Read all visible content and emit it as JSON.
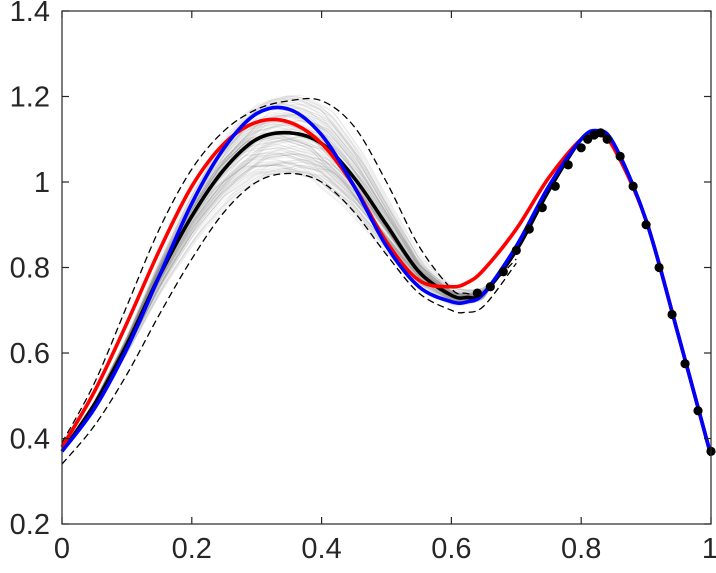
{
  "chart_data": {
    "type": "line",
    "title": "",
    "xlabel": "",
    "ylabel": "",
    "xlim": [
      0,
      1
    ],
    "ylim": [
      0.2,
      1.4
    ],
    "grid": false,
    "legend": "none",
    "xticks": [
      0,
      0.2,
      0.4,
      0.6,
      0.8,
      1
    ],
    "xtick_labels": [
      "0",
      "0.2",
      "0.4",
      "0.6",
      "0.8",
      "1"
    ],
    "yticks": [
      0.2,
      0.4,
      0.6,
      0.8,
      1.0,
      1.2,
      1.4
    ],
    "ytick_labels": [
      "0.2",
      "0.4",
      "0.6",
      "0.8",
      "1",
      "1.2",
      "1.4"
    ],
    "series": [
      {
        "role": "upper-band-dashed",
        "color": "#000000",
        "style": "dashed",
        "x": [
          0,
          0.05,
          0.1,
          0.15,
          0.2,
          0.25,
          0.3,
          0.35,
          0.4,
          0.45,
          0.5,
          0.55,
          0.6,
          0.62,
          0.65,
          0.7
        ],
        "y": [
          0.39,
          0.53,
          0.71,
          0.89,
          1.03,
          1.12,
          1.17,
          1.19,
          1.19,
          1.13,
          1.0,
          0.85,
          0.75,
          0.74,
          0.745,
          0.82
        ]
      },
      {
        "role": "lower-band-dashed",
        "color": "#000000",
        "style": "dashed",
        "x": [
          0,
          0.05,
          0.1,
          0.15,
          0.2,
          0.25,
          0.3,
          0.35,
          0.4,
          0.45,
          0.5,
          0.55,
          0.6,
          0.62,
          0.65,
          0.7
        ],
        "y": [
          0.34,
          0.43,
          0.55,
          0.69,
          0.82,
          0.93,
          1.0,
          1.02,
          1.0,
          0.93,
          0.83,
          0.74,
          0.7,
          0.695,
          0.71,
          0.81
        ]
      },
      {
        "role": "mean-black",
        "color": "#000000",
        "style": "solid",
        "x": [
          0,
          0.05,
          0.1,
          0.15,
          0.2,
          0.25,
          0.3,
          0.35,
          0.4,
          0.45,
          0.5,
          0.55,
          0.6,
          0.625,
          0.65,
          0.7,
          0.75,
          0.8,
          0.825,
          0.85,
          0.9,
          0.95,
          1.0
        ],
        "y": [
          0.37,
          0.48,
          0.62,
          0.78,
          0.92,
          1.03,
          1.1,
          1.115,
          1.09,
          1.01,
          0.9,
          0.79,
          0.735,
          0.73,
          0.74,
          0.84,
          0.98,
          1.1,
          1.115,
          1.09,
          0.91,
          0.64,
          0.36
        ]
      },
      {
        "role": "red",
        "color": "#ff0000",
        "style": "solid",
        "x": [
          0,
          0.05,
          0.1,
          0.15,
          0.2,
          0.25,
          0.3,
          0.35,
          0.4,
          0.45,
          0.5,
          0.55,
          0.6,
          0.625,
          0.65,
          0.7,
          0.75,
          0.8,
          0.825,
          0.85,
          0.9,
          0.95,
          1.0
        ],
        "y": [
          0.38,
          0.51,
          0.67,
          0.84,
          0.99,
          1.09,
          1.14,
          1.14,
          1.09,
          0.99,
          0.86,
          0.77,
          0.755,
          0.765,
          0.795,
          0.89,
          1.01,
          1.1,
          1.11,
          1.08,
          0.91,
          0.64,
          0.36
        ]
      },
      {
        "role": "blue",
        "color": "#0000ff",
        "style": "solid",
        "x": [
          0,
          0.05,
          0.1,
          0.15,
          0.2,
          0.25,
          0.3,
          0.35,
          0.4,
          0.45,
          0.5,
          0.55,
          0.6,
          0.625,
          0.65,
          0.7,
          0.75,
          0.8,
          0.825,
          0.85,
          0.9,
          0.95,
          1.0
        ],
        "y": [
          0.37,
          0.47,
          0.61,
          0.78,
          0.95,
          1.08,
          1.16,
          1.17,
          1.11,
          0.99,
          0.85,
          0.755,
          0.72,
          0.72,
          0.74,
          0.85,
          0.99,
          1.1,
          1.12,
          1.09,
          0.91,
          0.64,
          0.36
        ]
      },
      {
        "role": "observed-points",
        "color": "#000000",
        "style": "markers",
        "x": [
          0.64,
          0.66,
          0.68,
          0.7,
          0.72,
          0.74,
          0.76,
          0.78,
          0.8,
          0.81,
          0.82,
          0.83,
          0.84,
          0.86,
          0.88,
          0.9,
          0.92,
          0.94,
          0.96,
          0.98,
          1.0
        ],
        "y": [
          0.74,
          0.755,
          0.79,
          0.84,
          0.89,
          0.94,
          0.99,
          1.04,
          1.08,
          1.1,
          1.11,
          1.115,
          1.1,
          1.06,
          0.99,
          0.9,
          0.8,
          0.69,
          0.575,
          0.465,
          0.37
        ]
      }
    ],
    "ensemble": {
      "role": "gray-sample-curves",
      "color": "#808080",
      "count": 120,
      "description_values": "random perturbations around mean-black curve"
    }
  }
}
